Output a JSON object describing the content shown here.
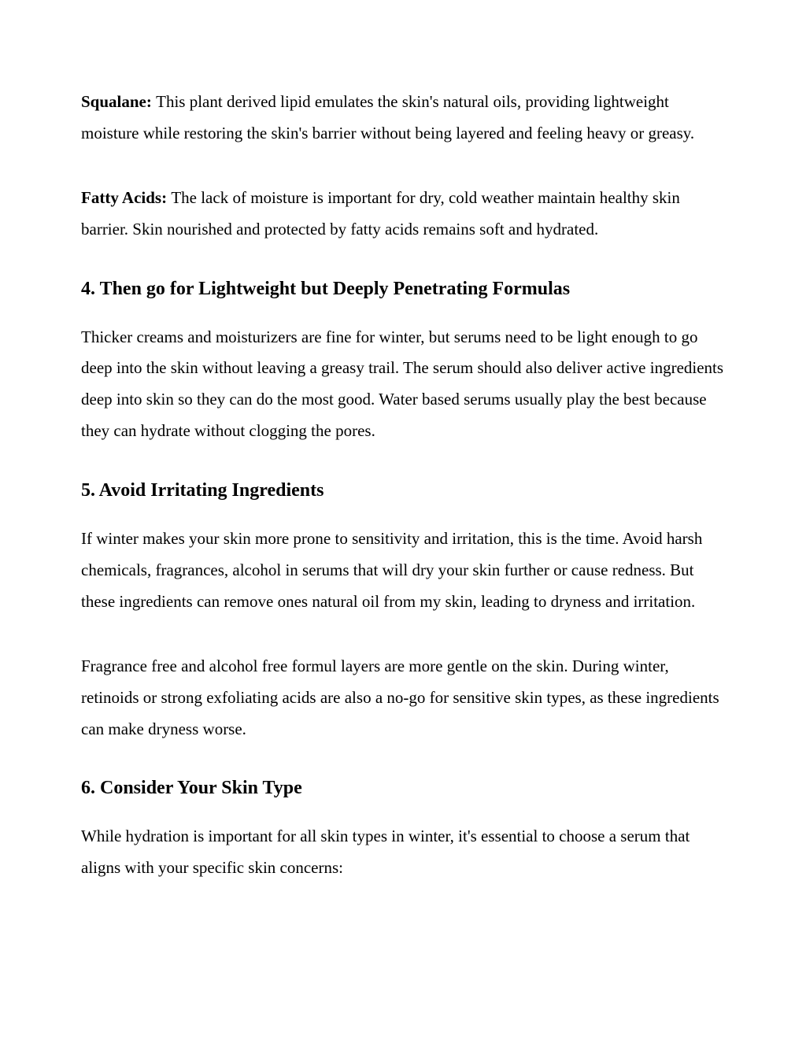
{
  "page": {
    "background_color": "#ffffff",
    "text_color": "#000000",
    "font_family": "Times New Roman",
    "body_fontsize": 21,
    "heading_fontsize": 24,
    "line_height": 1.9
  },
  "p1": {
    "label": "Squalane: ",
    "text": "This plant derived lipid emulates the skin's natural oils, providing lightweight moisture while restoring the skin's barrier without being layered and feeling heavy or greasy."
  },
  "p2": {
    "label": "Fatty Acids: ",
    "text": "The lack of moisture is important for dry, cold weather maintain healthy skin barrier. Skin nourished and protected by fatty acids remains soft and hydrated."
  },
  "h4": "4. Then go for Lightweight but Deeply Penetrating Formulas",
  "p4": "Thicker creams and moisturizers are fine for winter, but serums need to be light enough to go deep into the skin without leaving a greasy trail. The serum should also deliver active ingredients deep into skin so they can do the most good. Water based serums usually play the best because they can hydrate without clogging the pores.",
  "h5": "5. Avoid Irritating Ingredients",
  "p5a": "If winter makes your skin more prone to sensitivity and irritation, this is the time. Avoid harsh chemicals, fragrances, alcohol in serums that will dry your skin further or cause redness. But these ingredients can remove ones natural oil from my skin, leading to dryness and irritation.",
  "p5b": "Fragrance free and alcohol free formul layers are more gentle on the skin. During winter, retinoids or strong exfoliating acids are also a no-go for sensitive skin types, as these ingredients can make dryness worse.",
  "h6": "6. Consider Your Skin Type",
  "p6": "While hydration is important for all skin types in winter, it's essential to choose a serum that aligns with your specific skin concerns:"
}
